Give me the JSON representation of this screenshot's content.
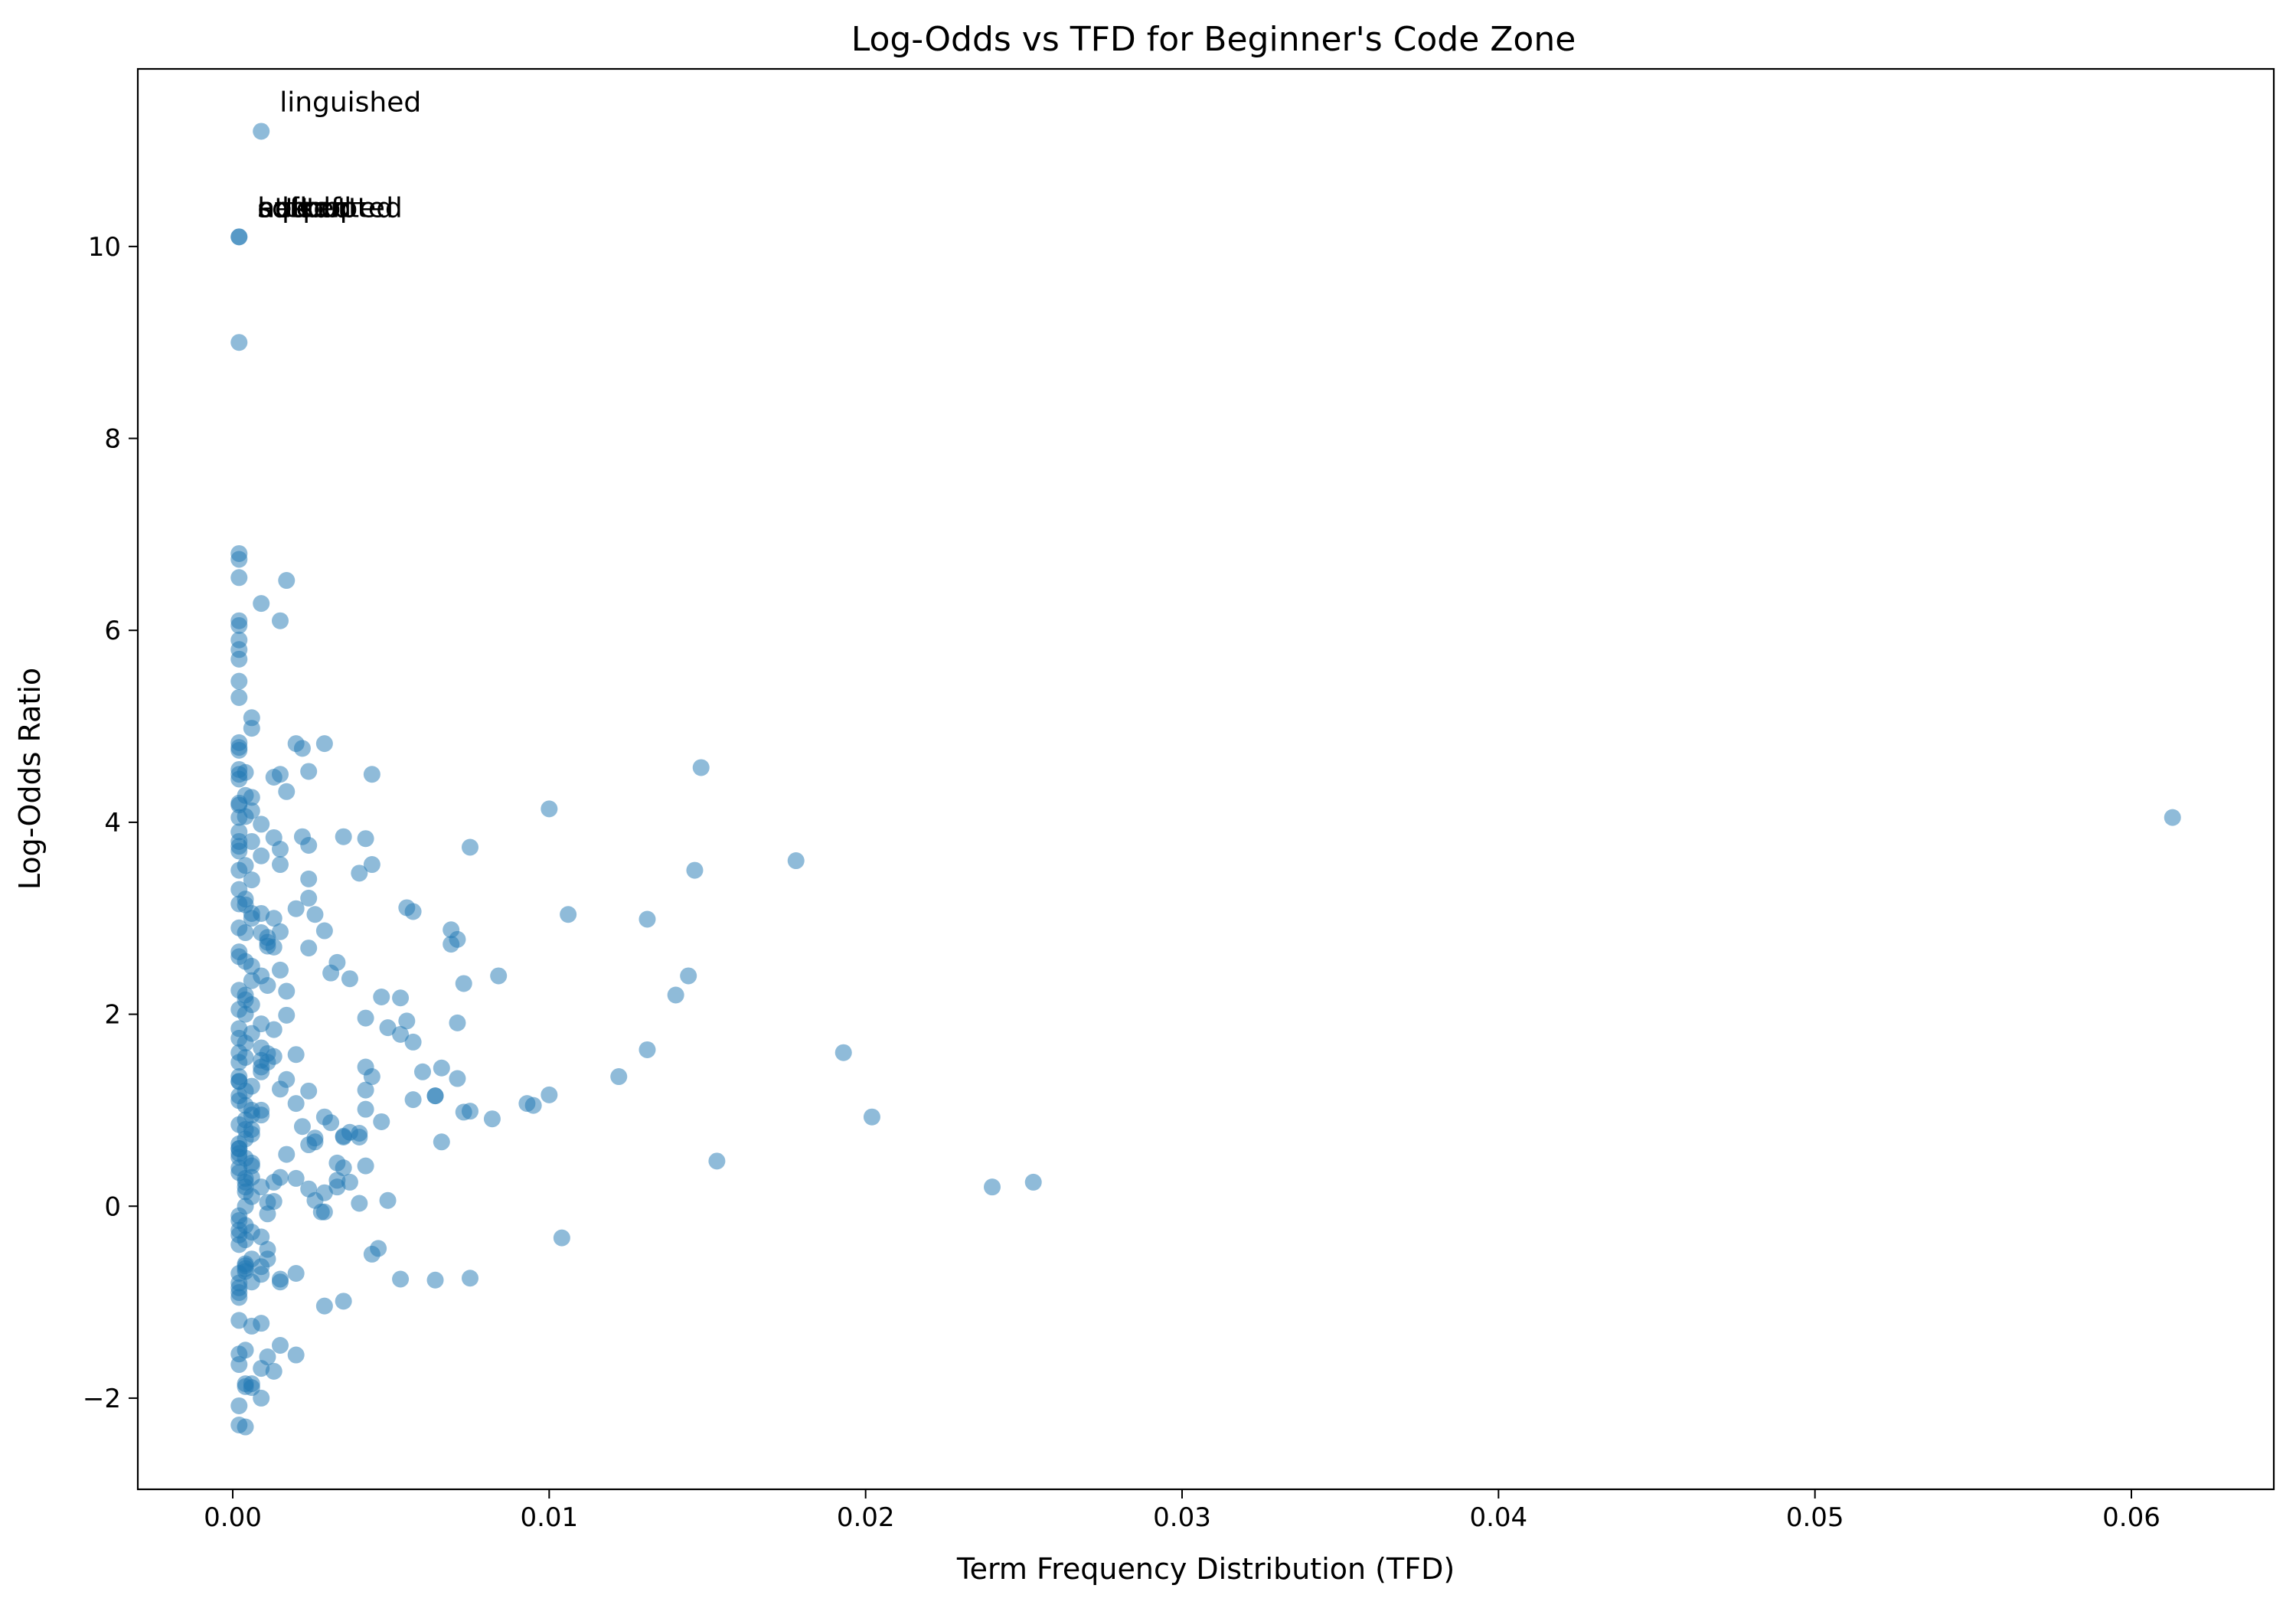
{
  "chart_data": {
    "type": "scatter",
    "title": "Log-Odds vs TFD for Beginner's Code Zone",
    "xlabel": "Term Frequency Distribution (TFD)",
    "ylabel": "Log-Odds Ratio",
    "xlim": [
      -0.003,
      0.0645
    ],
    "ylim": [
      -2.95,
      11.85
    ],
    "xticks": [
      0.0,
      0.01,
      0.02,
      0.03,
      0.04,
      0.05,
      0.06
    ],
    "xtick_labels": [
      "0.00",
      "0.01",
      "0.02",
      "0.03",
      "0.04",
      "0.05",
      "0.06"
    ],
    "yticks": [
      -2,
      0,
      2,
      4,
      6,
      8,
      10
    ],
    "ytick_labels": [
      "−2",
      "0",
      "2",
      "4",
      "6",
      "8",
      "10"
    ],
    "grid": false,
    "color": "#1f77b4",
    "annotations": [
      {
        "text": "linguished",
        "x": 0.0009,
        "y": 11.2
      },
      {
        "text": "sdfsdf",
        "x": 0.0002,
        "y": 10.1
      },
      {
        "text": "attempted",
        "x": 0.0002,
        "y": 10.1
      },
      {
        "text": "hellooo",
        "x": 0.0002,
        "y": 10.1
      },
      {
        "text": "sqrt",
        "x": 0.0002,
        "y": 10.1
      },
      {
        "text": "outputted",
        "x": 0.0002,
        "y": 10.1
      },
      {
        "text": "nested",
        "x": 0.0002,
        "y": 10.1
      }
    ],
    "x": [
      0.0009,
      0.0002,
      0.0002,
      0.0002,
      0.0002,
      0.0002,
      0.0002,
      0.0002,
      0.0002,
      0.0002,
      0.0002,
      0.0009,
      0.0017,
      0.0015,
      0.0002,
      0.0002,
      0.0002,
      0.0002,
      0.0002,
      0.0002,
      0.0002,
      0.0006,
      0.0006,
      0.0002,
      0.0004,
      0.0002,
      0.0004,
      0.0002,
      0.0002,
      0.0006,
      0.0006,
      0.0002,
      0.0004,
      0.0009,
      0.0002,
      0.0002,
      0.0006,
      0.0002,
      0.0002,
      0.0009,
      0.0013,
      0.0017,
      0.0015,
      0.002,
      0.0022,
      0.0029,
      0.0024,
      0.0044,
      0.0015,
      0.0022,
      0.0024,
      0.0035,
      0.0042,
      0.0044,
      0.004,
      0.0024,
      0.0013,
      0.0015,
      0.002,
      0.0024,
      0.0026,
      0.0013,
      0.0009,
      0.0006,
      0.0004,
      0.0011,
      0.0015,
      0.0029,
      0.0055,
      0.0057,
      0.0069,
      0.0071,
      0.0069,
      0.0075,
      0.0073,
      0.0084,
      0.01,
      0.0148,
      0.0106,
      0.0131,
      0.0146,
      0.0178,
      0.0613,
      0.0033,
      0.0037,
      0.0031,
      0.0024,
      0.0011,
      0.0015,
      0.0017,
      0.0047,
      0.0053,
      0.0042,
      0.0049,
      0.0055,
      0.0057,
      0.0071,
      0.0057,
      0.006,
      0.0053,
      0.0064,
      0.0042,
      0.0042,
      0.0044,
      0.0042,
      0.0035,
      0.004,
      0.0024,
      0.002,
      0.0017,
      0.0013,
      0.0011,
      0.0009,
      0.0013,
      0.0017,
      0.0015,
      0.002,
      0.0022,
      0.0026,
      0.0029,
      0.0031,
      0.0035,
      0.0037,
      0.004,
      0.0042,
      0.0033,
      0.0026,
      0.0024,
      0.0026,
      0.0028,
      0.0033,
      0.0015,
      0.0011,
      0.0009,
      0.0013,
      0.0017,
      0.002,
      0.0024,
      0.0029,
      0.0033,
      0.0035,
      0.0029,
      0.002,
      0.0015,
      0.0009,
      0.0011,
      0.0006,
      0.0004,
      0.0006,
      0.0009,
      0.0011,
      0.0015,
      0.0009,
      0.0006,
      0.0002,
      0.0004,
      0.0037,
      0.004,
      0.0046,
      0.0049,
      0.0044,
      0.0047,
      0.0066,
      0.0064,
      0.0071,
      0.0073,
      0.0082,
      0.0075,
      0.0093,
      0.0095,
      0.0122,
      0.0131,
      0.014,
      0.0144,
      0.0153,
      0.024,
      0.0253,
      0.0193,
      0.0202,
      0.0104,
      0.01,
      0.0066,
      0.0075,
      0.0064,
      0.0053,
      0.0035,
      0.0029,
      0.002,
      0.0011,
      0.0009,
      0.0013,
      0.0006,
      0.0004,
      0.0002,
      0.0004,
      0.0006,
      0.0009,
      0.0002,
      0.0004,
      0.0002,
      0.0002,
      0.0002,
      0.0004,
      0.0006,
      0.0009,
      0.0015,
      0.0002,
      0.0002,
      0.0004,
      0.0002,
      0.0002,
      0.0002,
      0.0004,
      0.0006,
      0.0002,
      0.0004,
      0.0002,
      0.0006,
      0.0004,
      0.0002,
      0.0004,
      0.0002,
      0.0006,
      0.0004,
      0.0002,
      0.0009,
      0.0006,
      0.0004,
      0.0002,
      0.0004,
      0.0002,
      0.0006,
      0.0009,
      0.0002,
      0.0004,
      0.0002,
      0.0004,
      0.0006,
      0.0002,
      0.0009,
      0.0004,
      0.0002,
      0.0006,
      0.0004,
      0.0002,
      0.0011,
      0.0009,
      0.0006,
      0.0004,
      0.0002,
      0.0013,
      0.0011,
      0.0004,
      0.0002,
      0.0006,
      0.0009,
      0.0002,
      0.0004,
      0.0002,
      0.0006,
      0.0002,
      0.0004,
      0.0009,
      0.0002,
      0.0004,
      0.0006,
      0.0002,
      0.0004,
      0.0002,
      0.0011,
      0.0004,
      0.0002,
      0.0006,
      0.0002,
      0.0004,
      0.0002,
      0.0009,
      0.0002,
      0.0004,
      0.0006,
      0.0002,
      0.0013,
      0.0004,
      0.0002,
      0.0006,
      0.0009,
      0.0002,
      0.0004,
      0.0002,
      0.0006,
      0.0011,
      0.0004,
      0.0002
    ],
    "y": [
      11.2,
      10.1,
      10.1,
      9.0,
      6.8,
      6.74,
      6.55,
      6.1,
      6.05,
      5.9,
      5.8,
      6.28,
      6.52,
      6.1,
      5.7,
      5.47,
      5.3,
      4.83,
      4.78,
      4.75,
      4.55,
      5.09,
      4.98,
      4.5,
      4.52,
      4.45,
      4.28,
      4.2,
      4.18,
      4.26,
      4.12,
      4.05,
      4.06,
      3.98,
      3.9,
      3.8,
      3.8,
      3.75,
      3.7,
      3.65,
      4.47,
      4.32,
      4.5,
      4.82,
      4.77,
      4.82,
      4.53,
      4.5,
      3.72,
      3.85,
      3.76,
      3.85,
      3.83,
      3.56,
      3.47,
      3.41,
      3.84,
      3.56,
      3.1,
      3.21,
      3.04,
      3.0,
      2.85,
      3.05,
      3.14,
      2.8,
      2.86,
      2.87,
      3.11,
      3.07,
      2.88,
      2.78,
      2.73,
      3.74,
      2.32,
      2.4,
      4.14,
      4.57,
      3.04,
      2.99,
      3.5,
      3.6,
      4.05,
      2.54,
      2.37,
      2.43,
      2.69,
      2.71,
      2.46,
      2.24,
      2.18,
      2.17,
      1.96,
      1.86,
      1.93,
      1.71,
      1.91,
      1.11,
      1.4,
      1.79,
      1.15,
      1.45,
      1.21,
      1.35,
      1.01,
      0.72,
      0.76,
      1.2,
      1.58,
      1.99,
      1.84,
      1.59,
      1.52,
      1.56,
      1.32,
      1.22,
      1.07,
      0.83,
      0.71,
      0.93,
      0.87,
      0.73,
      0.77,
      0.72,
      0.42,
      0.27,
      0.67,
      0.18,
      0.06,
      -0.06,
      0.45,
      0.3,
      0.04,
      0.2,
      0.25,
      0.54,
      0.29,
      0.64,
      0.14,
      0.2,
      0.4,
      -0.06,
      -0.7,
      -0.76,
      -0.32,
      -0.08,
      -0.27,
      -0.68,
      -0.79,
      -0.63,
      -0.55,
      -0.79,
      -0.71,
      0.42,
      0.51,
      0.29,
      0.25,
      0.03,
      -0.44,
      0.06,
      -0.5,
      0.88,
      1.44,
      1.15,
      1.33,
      0.98,
      0.91,
      0.99,
      1.07,
      1.05,
      1.35,
      1.63,
      2.2,
      2.4,
      0.47,
      0.2,
      0.25,
      1.6,
      0.93,
      -0.33,
      1.16,
      0.67,
      -0.75,
      -0.77,
      -0.76,
      -0.99,
      -1.04,
      -1.55,
      -1.57,
      -1.69,
      -1.72,
      -1.89,
      -1.85,
      -1.19,
      -1.5,
      -1.85,
      -2.0,
      -2.28,
      -2.3,
      -2.08,
      -1.65,
      -1.54,
      -1.88,
      -1.25,
      -1.22,
      -1.45,
      -0.95,
      -0.85,
      -0.62,
      -0.7,
      -0.9,
      -0.4,
      -0.2,
      -0.55,
      -0.3,
      0.0,
      -0.1,
      0.1,
      0.2,
      0.35,
      0.5,
      0.6,
      0.45,
      0.7,
      0.85,
      0.95,
      1.0,
      0.8,
      1.1,
      1.2,
      1.3,
      1.25,
      1.4,
      1.5,
      1.55,
      1.6,
      1.7,
      1.8,
      1.75,
      1.9,
      2.0,
      2.05,
      2.1,
      2.2,
      2.25,
      2.3,
      2.4,
      2.5,
      2.55,
      2.6,
      2.7,
      2.75,
      2.85,
      2.9,
      3.0,
      3.05,
      3.15,
      3.2,
      3.3,
      3.4,
      3.5,
      3.55,
      1.65,
      1.35,
      1.05,
      0.75,
      0.55,
      0.15,
      -0.15,
      -0.45,
      -0.65,
      -0.8,
      0.3,
      0.65,
      0.9,
      1.15,
      1.45,
      1.85,
      2.15,
      2.35,
      2.65,
      0.05,
      -0.35,
      0.4,
      0.8,
      1.0,
      1.3,
      0.25,
      -0.25,
      0.95,
      1.5,
      -0.6,
      0.6
    ]
  }
}
